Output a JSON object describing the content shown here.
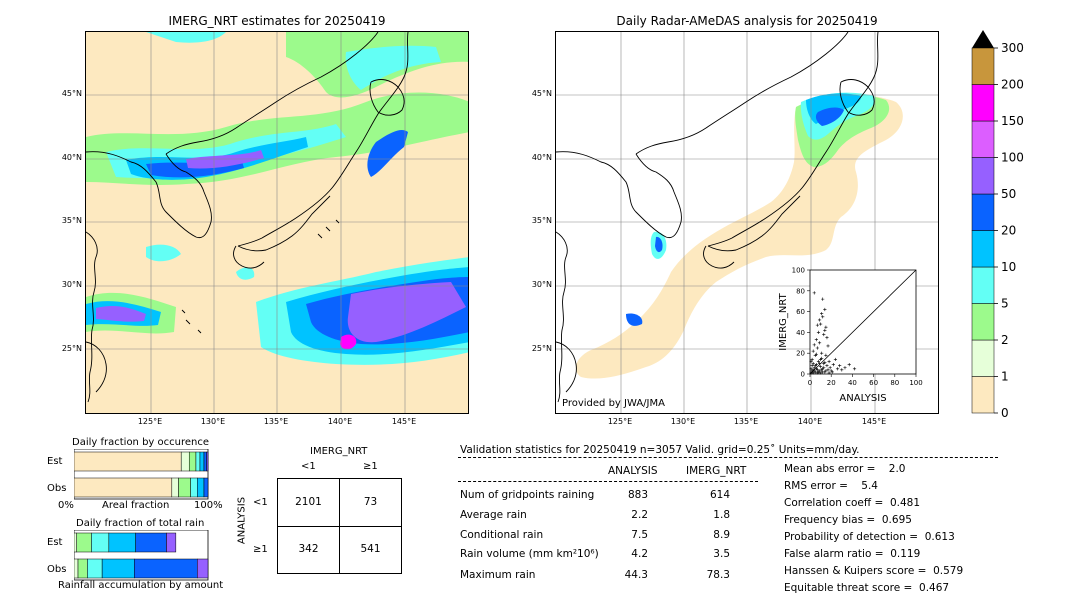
{
  "left_map": {
    "title": "IMERG_NRT estimates for 20250419",
    "lat_labels": [
      "45°N",
      "40°N",
      "35°N",
      "30°N",
      "25°N"
    ],
    "lon_labels": [
      "125°E",
      "130°E",
      "135°E",
      "140°E",
      "145°E"
    ]
  },
  "right_map": {
    "title": "Daily Radar-AMeDAS analysis for 20250419",
    "lat_labels": [
      "45°N",
      "40°N",
      "35°N",
      "30°N",
      "25°N"
    ],
    "lon_labels": [
      "125°E",
      "130°E",
      "135°E",
      "140°E",
      "145°E"
    ],
    "credit": "Provided by JWA/JMA"
  },
  "colorbar": {
    "ticks": [
      "0",
      "1",
      "2",
      "5",
      "10",
      "20",
      "50",
      "100",
      "150",
      "200",
      "300"
    ],
    "colors": [
      "#fde9c0",
      "#e6ffd9",
      "#9cfa8c",
      "#63fff5",
      "#00c3ff",
      "#0a63ff",
      "#9660ff",
      "#dc5eff",
      "#ff00ff",
      "#c8963c"
    ]
  },
  "occurrence": {
    "title": "Daily fraction by occurence",
    "rows": [
      "Est",
      "Obs"
    ],
    "axis_left": "0%",
    "axis_mid": "Areal fraction",
    "axis_right": "100%"
  },
  "rainfall": {
    "title": "Daily fraction of total rain",
    "rows": [
      "Est",
      "Obs"
    ],
    "footer": "Rainfall accumulation by amount"
  },
  "contingency": {
    "col_title": "IMERG_NRT",
    "col_labels": [
      "<1",
      "≥1"
    ],
    "row_title": "ANALYSIS",
    "row_labels": [
      "<1",
      "≥1"
    ],
    "cells": [
      "2101",
      "73",
      "342",
      "541"
    ]
  },
  "validation": {
    "header": "Validation statistics for 20250419  n=3057 Valid. grid=0.25˚ Units=mm/day.",
    "col_analysis": "ANALYSIS",
    "col_imerg": "IMERG_NRT",
    "rows": [
      {
        "label": "Num of gridpoints raining",
        "analysis": "883",
        "imerg": "614"
      },
      {
        "label": "Average rain",
        "analysis": "2.2",
        "imerg": "1.8"
      },
      {
        "label": "Conditional rain",
        "analysis": "7.5",
        "imerg": "8.9"
      },
      {
        "label": "Rain volume (mm km²10⁶)",
        "analysis": "4.2",
        "imerg": "3.5"
      },
      {
        "label": "Maximum rain",
        "analysis": "44.3",
        "imerg": "78.3"
      }
    ],
    "scores": [
      "Mean abs error =    2.0",
      "RMS error =    5.4",
      "Correlation coeff =  0.481",
      "Frequency bias =  0.695",
      "Probability of detection =  0.613",
      "False alarm ratio =  0.119",
      "Hanssen & Kuipers score =  0.579",
      "Equitable threat score =  0.467"
    ]
  },
  "chart_data": [
    {
      "type": "scatter",
      "xlabel": "ANALYSIS",
      "ylabel": "IMERG_NRT",
      "xlim": [
        0,
        100
      ],
      "ylim": [
        0,
        100
      ],
      "ticks": [
        "0",
        "20",
        "40",
        "60",
        "80",
        "100"
      ],
      "points": [
        [
          1,
          1
        ],
        [
          2,
          3
        ],
        [
          3,
          1
        ],
        [
          4,
          6
        ],
        [
          5,
          2
        ],
        [
          6,
          9
        ],
        [
          7,
          4
        ],
        [
          8,
          12
        ],
        [
          9,
          3
        ],
        [
          10,
          7
        ],
        [
          11,
          15
        ],
        [
          12,
          5
        ],
        [
          13,
          10
        ],
        [
          14,
          2
        ],
        [
          15,
          18
        ],
        [
          16,
          8
        ],
        [
          17,
          4
        ],
        [
          18,
          12
        ],
        [
          19,
          6
        ],
        [
          20,
          3
        ],
        [
          22,
          9
        ],
        [
          24,
          14
        ],
        [
          26,
          5
        ],
        [
          28,
          8
        ],
        [
          30,
          4
        ],
        [
          33,
          6
        ],
        [
          37,
          9
        ],
        [
          42,
          5
        ],
        [
          2,
          14
        ],
        [
          3,
          22
        ],
        [
          4,
          28
        ],
        [
          5,
          18
        ],
        [
          6,
          33
        ],
        [
          7,
          25
        ],
        [
          8,
          40
        ],
        [
          9,
          30
        ],
        [
          10,
          48
        ],
        [
          11,
          20
        ],
        [
          12,
          55
        ],
        [
          13,
          38
        ],
        [
          14,
          62
        ],
        [
          15,
          45
        ],
        [
          16,
          35
        ],
        [
          17,
          27
        ],
        [
          3,
          10
        ],
        [
          6,
          19
        ],
        [
          9,
          52
        ],
        [
          12,
          72
        ],
        [
          4,
          78
        ],
        [
          14,
          42
        ],
        [
          11,
          58
        ],
        [
          7,
          47
        ],
        [
          5,
          8
        ],
        [
          8,
          2
        ],
        [
          10,
          1
        ],
        [
          12,
          2
        ],
        [
          15,
          3
        ],
        [
          18,
          1
        ],
        [
          21,
          2
        ],
        [
          1,
          5
        ],
        [
          2,
          8
        ],
        [
          3,
          4
        ],
        [
          1,
          12
        ],
        [
          2,
          2
        ],
        [
          4,
          3
        ],
        [
          6,
          5
        ],
        [
          7,
          1
        ],
        [
          9,
          10
        ],
        [
          10,
          14
        ],
        [
          11,
          4
        ],
        [
          13,
          6
        ],
        [
          14,
          11
        ]
      ]
    },
    {
      "type": "bar",
      "title": "Daily fraction by occurence",
      "categories": [
        "Est",
        "Obs"
      ],
      "series": [
        {
          "values": [
            0.8,
            0.73
          ]
        },
        {
          "values": [
            0.06,
            0.05
          ]
        },
        {
          "values": [
            0.05,
            0.09
          ]
        },
        {
          "values": [
            0.03,
            0.05
          ]
        },
        {
          "values": [
            0.03,
            0.05
          ]
        },
        {
          "values": [
            0.02,
            0.03
          ]
        },
        {
          "values": [
            0.01,
            0.0
          ]
        }
      ]
    },
    {
      "type": "bar",
      "title": "Daily fraction of total rain",
      "categories": [
        "Est",
        "Obs"
      ],
      "series": [
        {
          "values": [
            0.02,
            0.03
          ]
        },
        {
          "values": [
            0.11,
            0.07
          ]
        },
        {
          "values": [
            0.13,
            0.11
          ]
        },
        {
          "values": [
            0.2,
            0.24
          ]
        },
        {
          "values": [
            0.23,
            0.47
          ]
        },
        {
          "values": [
            0.07,
            0.08
          ]
        }
      ]
    }
  ]
}
